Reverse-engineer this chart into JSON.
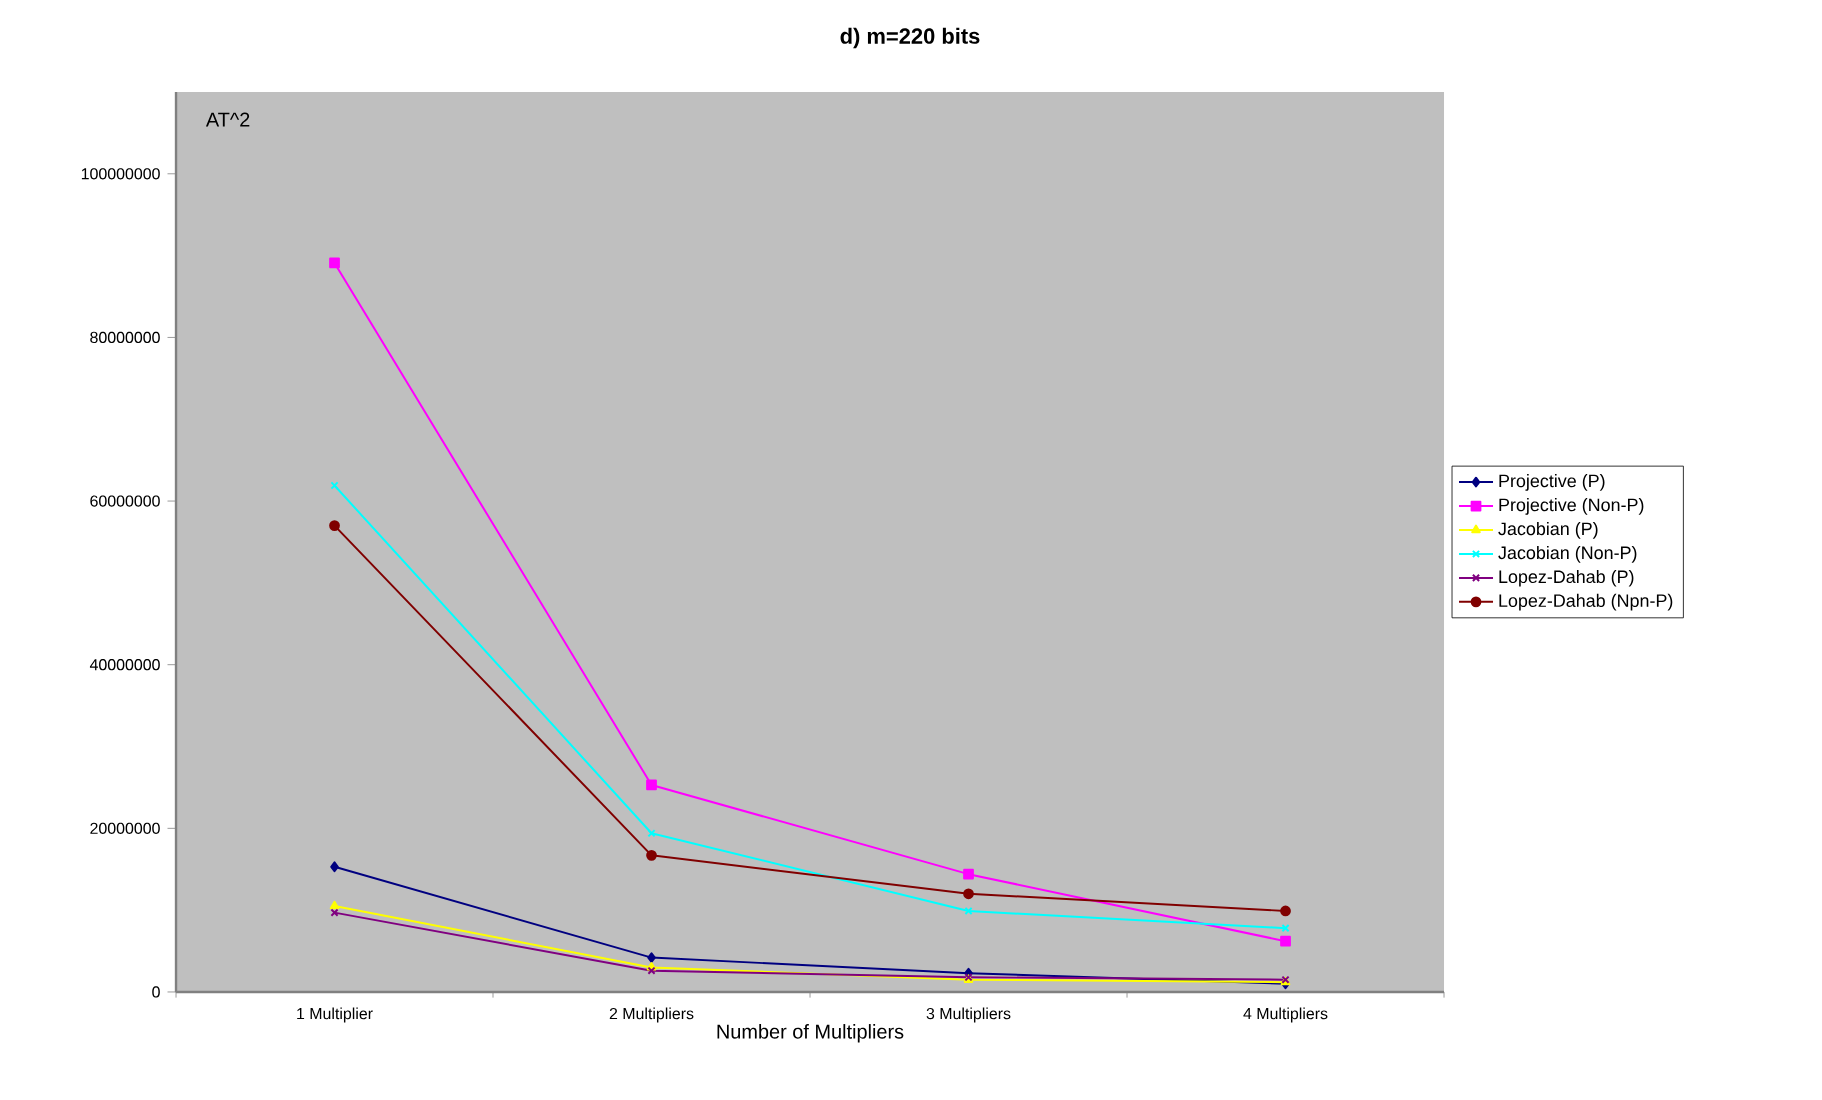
{
  "chart_data": {
    "type": "line",
    "title": "d) m=220 bits",
    "xlabel": "Number of Multipliers",
    "annotations": [
      "AT^2"
    ],
    "categories": [
      "1 Multiplier",
      "2 Multipliers",
      "3 Multipliers",
      "4 Multipliers"
    ],
    "ylim": [
      0,
      110000000
    ],
    "yticks": [
      0,
      20000000,
      40000000,
      60000000,
      80000000,
      100000000
    ],
    "legend": "right",
    "series": [
      {
        "name": "Projective (P)",
        "color": "#000080",
        "marker": "diamond",
        "values": [
          15300000,
          4200000,
          2300000,
          1000000
        ]
      },
      {
        "name": "Projective (Non-P)",
        "color": "#ff00ff",
        "marker": "square",
        "values": [
          89100000,
          25300000,
          14400000,
          6200000
        ]
      },
      {
        "name": "Jacobian (P)",
        "color": "#ffff00",
        "marker": "triangle",
        "values": [
          10500000,
          3000000,
          1500000,
          1200000
        ]
      },
      {
        "name": "Jacobian (Non-P)",
        "color": "#00ffff",
        "marker": "cross",
        "values": [
          61900000,
          19400000,
          9900000,
          7800000
        ]
      },
      {
        "name": "Lopez-Dahab (P)",
        "color": "#800080",
        "marker": "cross",
        "values": [
          9700000,
          2600000,
          1800000,
          1500000
        ]
      },
      {
        "name": "Lopez-Dahab (Npn-P)",
        "color": "#800000",
        "marker": "circle",
        "values": [
          57000000,
          16700000,
          12000000,
          9900000
        ]
      }
    ]
  }
}
